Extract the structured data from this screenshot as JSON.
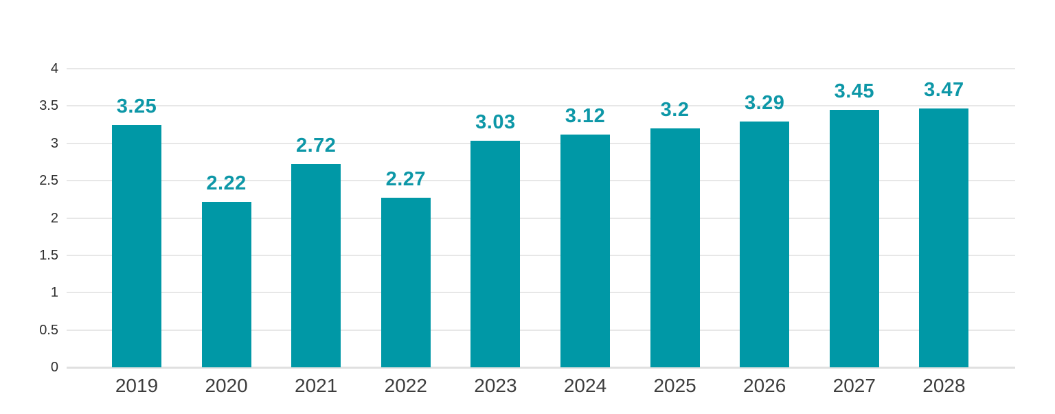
{
  "chart_data": {
    "type": "bar",
    "categories": [
      "2019",
      "2020",
      "2021",
      "2022",
      "2023",
      "2024",
      "2025",
      "2026",
      "2027",
      "2028"
    ],
    "values": [
      3.25,
      2.22,
      2.72,
      2.27,
      3.03,
      3.12,
      3.2,
      3.29,
      3.45,
      3.47
    ],
    "value_labels": [
      "3.25",
      "2.22",
      "2.72",
      "2.27",
      "3.03",
      "3.12",
      "3.2",
      "3.29",
      "3.45",
      "3.47"
    ],
    "title": "",
    "xlabel": "",
    "ylabel": "",
    "ylim": [
      0,
      4
    ],
    "yticks": [
      0,
      0.5,
      1,
      1.5,
      2,
      2.5,
      3,
      3.5,
      4
    ],
    "ytick_labels": [
      "0",
      "0.5",
      "1",
      "1.5",
      "2",
      "2.5",
      "3",
      "3.5",
      "4"
    ],
    "grid": true,
    "legend": false,
    "data_labels_shown": true,
    "colors": {
      "bar": "#0098a6",
      "value_label": "#0d97a7",
      "xtick_text": "#3d3d3d",
      "ytick_text": "#2e2e2e",
      "gridline": "#e7e7e7",
      "baseline": "#e0e0e0",
      "background": "#ffffff"
    }
  }
}
